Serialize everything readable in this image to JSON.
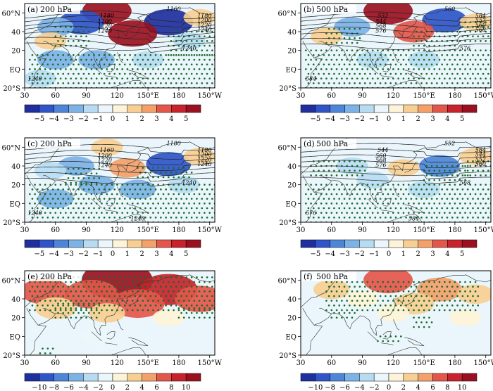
{
  "figure": {
    "colors": {
      "scale": [
        "#1f2f9e",
        "#2f55c8",
        "#4d86d8",
        "#7cb2e6",
        "#b7dcf2",
        "#eaf6fb",
        "#fdf3d8",
        "#f7cf93",
        "#f3a06a",
        "#e4564a",
        "#c8222c",
        "#9b1020"
      ],
      "dots": "#1a6a2c",
      "contour": "#222222",
      "coast": "#333333"
    }
  },
  "chart_data": [
    {
      "type": "heatmap",
      "panel": "(a)",
      "title": "200  hPa",
      "x_ticks": [
        "30",
        "60",
        "90",
        "120",
        "150°E",
        "180",
        "150°W"
      ],
      "y_ticks": [
        "60°N",
        "40",
        "20",
        "EQ",
        "20°S"
      ],
      "colorbar_ticks": [
        "−5",
        "−4",
        "−3",
        "−2",
        "−1",
        "0",
        "1",
        "2",
        "3",
        "4",
        "5"
      ],
      "contour_labels": [
        "1180",
        "1160",
        "1200",
        "1220",
        "1240",
        "1180",
        "1200",
        "1220",
        "1240",
        "1240",
        "1240"
      ],
      "anomaly_cells": [
        {
          "lon": 110,
          "lat": 62,
          "value": 5
        },
        {
          "lon": 85,
          "lat": 50,
          "value": -4
        },
        {
          "lon": 170,
          "lat": 50,
          "value": -5
        },
        {
          "lon": 135,
          "lat": 38,
          "value": 5
        },
        {
          "lon": 60,
          "lat": 45,
          "value": -2
        },
        {
          "lon": 55,
          "lat": 30,
          "value": 1
        },
        {
          "lon": 200,
          "lat": 55,
          "value": 1
        },
        {
          "lon": 100,
          "lat": 10,
          "value": -2
        },
        {
          "lon": 150,
          "lat": 10,
          "value": -1
        },
        {
          "lon": 60,
          "lat": 10,
          "value": -2
        },
        {
          "lon": 190,
          "lat": 30,
          "value": -1
        },
        {
          "lon": 45,
          "lat": -10,
          "value": -1
        }
      ]
    },
    {
      "type": "heatmap",
      "panel": "(b)",
      "title": "500  hPa",
      "x_ticks": [
        "30",
        "60",
        "90",
        "120",
        "150°E",
        "180",
        "150°W"
      ],
      "y_ticks": [
        "60°N",
        "40",
        "20",
        "EQ",
        "20°S"
      ],
      "colorbar_ticks": [
        "−5",
        "−4",
        "−3",
        "−2",
        "−1",
        "0",
        "1",
        "2",
        "3",
        "4",
        "5"
      ],
      "contour_labels": [
        "552",
        "560",
        "544",
        "568",
        "576",
        "584",
        "552",
        "560",
        "568",
        "576",
        "584"
      ],
      "anomaly_cells": [
        {
          "lon": 115,
          "lat": 62,
          "value": 5
        },
        {
          "lon": 170,
          "lat": 52,
          "value": -4
        },
        {
          "lon": 140,
          "lat": 40,
          "value": 3
        },
        {
          "lon": 80,
          "lat": 45,
          "value": -2
        },
        {
          "lon": 55,
          "lat": 35,
          "value": 1
        },
        {
          "lon": 200,
          "lat": 50,
          "value": 1
        },
        {
          "lon": 100,
          "lat": 10,
          "value": -1
        },
        {
          "lon": 150,
          "lat": 10,
          "value": -1
        }
      ]
    },
    {
      "type": "heatmap",
      "panel": "(c)",
      "title": "200  hPa",
      "x_ticks": [
        "30",
        "60",
        "90",
        "120",
        "150°E",
        "180",
        "150°W"
      ],
      "y_ticks": [
        "60°N",
        "40",
        "20",
        "EQ",
        "20°S"
      ],
      "colorbar_ticks": [
        "−5",
        "−4",
        "−3",
        "−2",
        "−1",
        "0",
        "1",
        "2",
        "3",
        "4",
        "5"
      ],
      "contour_labels": [
        "1160",
        "1180",
        "1200",
        "1220",
        "1240",
        "1180",
        "1200",
        "1220",
        "1240",
        "1240",
        "1240",
        "1240"
      ],
      "anomaly_cells": [
        {
          "lon": 170,
          "lat": 42,
          "value": -4
        },
        {
          "lon": 130,
          "lat": 38,
          "value": 2
        },
        {
          "lon": 80,
          "lat": 40,
          "value": -2
        },
        {
          "lon": 55,
          "lat": 35,
          "value": -1
        },
        {
          "lon": 100,
          "lat": 20,
          "value": -2
        },
        {
          "lon": 60,
          "lat": 5,
          "value": -2
        },
        {
          "lon": 140,
          "lat": 15,
          "value": -2
        },
        {
          "lon": 185,
          "lat": 20,
          "value": -1
        },
        {
          "lon": 110,
          "lat": 60,
          "value": 1
        },
        {
          "lon": 200,
          "lat": 50,
          "value": 1
        }
      ]
    },
    {
      "type": "heatmap",
      "panel": "(d)",
      "title": "500  hPa",
      "x_ticks": [
        "30",
        "60",
        "90",
        "120",
        "150°E",
        "180",
        "150°W"
      ],
      "y_ticks": [
        "60°N",
        "40",
        "20",
        "EQ",
        "20°S"
      ],
      "colorbar_ticks": [
        "−5",
        "−4",
        "−3",
        "−2",
        "−1",
        "0",
        "1",
        "2",
        "3",
        "4",
        "5"
      ],
      "contour_labels": [
        "544",
        "552",
        "560",
        "568",
        "576",
        "584",
        "544",
        "552",
        "560",
        "568",
        "576",
        "584"
      ],
      "anomaly_cells": [
        {
          "lon": 165,
          "lat": 40,
          "value": -3
        },
        {
          "lon": 130,
          "lat": 38,
          "value": 1
        },
        {
          "lon": 80,
          "lat": 40,
          "value": -1
        },
        {
          "lon": 100,
          "lat": 25,
          "value": -1
        },
        {
          "lon": 150,
          "lat": 15,
          "value": -1
        },
        {
          "lon": 200,
          "lat": 50,
          "value": 1
        }
      ]
    },
    {
      "type": "heatmap",
      "panel": "(e)",
      "title": "200  hPa",
      "x_ticks": [
        "30",
        "60",
        "90",
        "120",
        "150°E",
        "180",
        "150°W"
      ],
      "y_ticks": [
        "60°N",
        "40",
        "20",
        "EQ",
        "20°S"
      ],
      "colorbar_ticks": [
        "−10",
        "−8",
        "−6",
        "−4",
        "−2",
        "0",
        "2",
        "4",
        "6",
        "8",
        "10"
      ],
      "contour_labels": [],
      "anomaly_cells": [
        {
          "lon": 120,
          "lat": 60,
          "value": 10
        },
        {
          "lon": 170,
          "lat": 50,
          "value": 7
        },
        {
          "lon": 95,
          "lat": 45,
          "value": 6
        },
        {
          "lon": 50,
          "lat": 48,
          "value": 5
        },
        {
          "lon": 140,
          "lat": 35,
          "value": 6
        },
        {
          "lon": 200,
          "lat": 40,
          "value": 5
        },
        {
          "lon": 60,
          "lat": 30,
          "value": 3
        },
        {
          "lon": 110,
          "lat": 25,
          "value": 2
        },
        {
          "lon": 170,
          "lat": 20,
          "value": 1
        },
        {
          "lon": 100,
          "lat": 0,
          "value": -1
        }
      ]
    },
    {
      "type": "heatmap",
      "panel": "(f)",
      "title": "500  hPa",
      "x_ticks": [
        "30",
        "60",
        "90",
        "120",
        "150°E",
        "180",
        "150°W"
      ],
      "y_ticks": [
        "60°N",
        "40",
        "20",
        "EQ",
        "20°S"
      ],
      "colorbar_ticks": [
        "−10",
        "−8",
        "−6",
        "−4",
        "−2",
        "0",
        "2",
        "4",
        "6",
        "8",
        "10"
      ],
      "contour_labels": [],
      "anomaly_cells": [
        {
          "lon": 115,
          "lat": 60,
          "value": 5
        },
        {
          "lon": 165,
          "lat": 50,
          "value": 4
        },
        {
          "lon": 60,
          "lat": 50,
          "value": 2
        },
        {
          "lon": 140,
          "lat": 35,
          "value": 3
        },
        {
          "lon": 200,
          "lat": 45,
          "value": 2
        },
        {
          "lon": 90,
          "lat": 40,
          "value": 1
        },
        {
          "lon": 120,
          "lat": 25,
          "value": 1
        },
        {
          "lon": 190,
          "lat": 20,
          "value": 1
        }
      ]
    }
  ]
}
